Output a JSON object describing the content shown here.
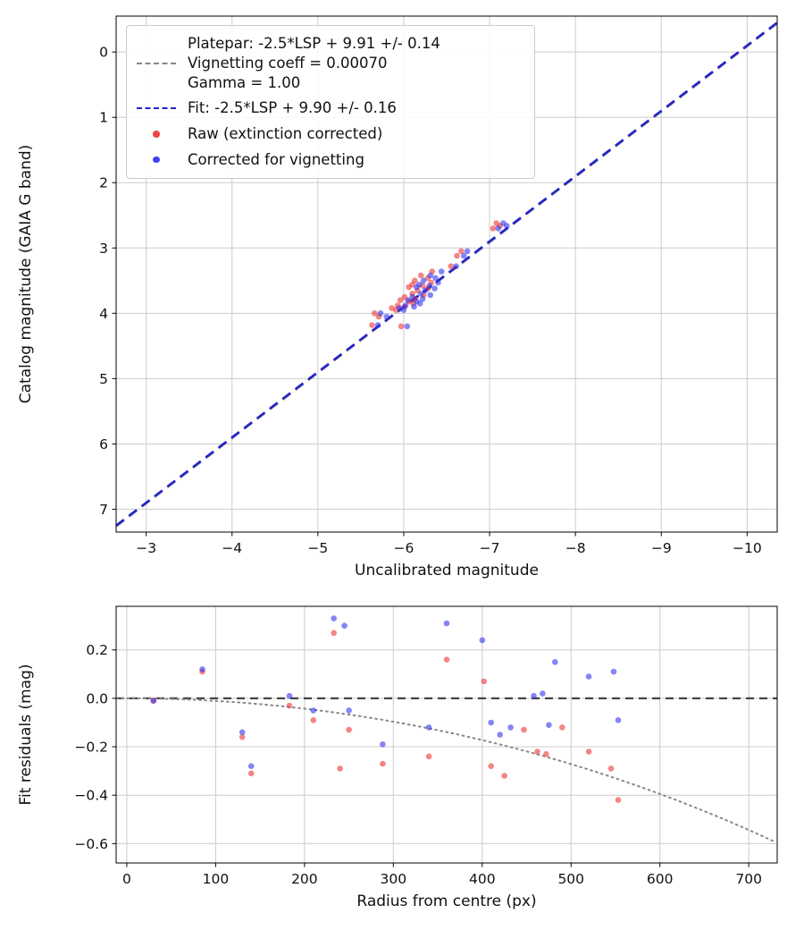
{
  "figure": {
    "background": "#ffffff",
    "text_color": "#111111",
    "grid_color": "#cccccc",
    "spine_color": "#000000"
  },
  "chart_data": [
    {
      "type": "scatter",
      "title": "",
      "xlabel": "Uncalibrated magnitude",
      "ylabel": "Catalog magnitude (GAIA G band)",
      "xlim": [
        -2.65,
        -10.35
      ],
      "ylim": [
        -0.55,
        7.35
      ],
      "x_axis_inverted": true,
      "y_axis_inverted": true,
      "grid": true,
      "xticks": [
        -3,
        -4,
        -5,
        -6,
        -7,
        -8,
        -9,
        -10
      ],
      "xticklabels": [
        "−3",
        "−4",
        "−5",
        "−6",
        "−7",
        "−8",
        "−9",
        "−10"
      ],
      "yticks": [
        0,
        1,
        2,
        3,
        4,
        5,
        6,
        7
      ],
      "yticklabels": [
        "0",
        "1",
        "2",
        "3",
        "4",
        "5",
        "6",
        "7"
      ],
      "lines": [
        {
          "name": "platepar-line",
          "label": "Platepar: -2.5*LSP + 9.91 +/- 0.14",
          "slope": 1,
          "intercept": 9.91,
          "color": "#888888",
          "style": "dashed"
        },
        {
          "name": "fit-line",
          "label": "Fit: -2.5*LSP + 9.90 +/- 0.16",
          "slope": 1,
          "intercept": 9.9,
          "color": "#2424cc",
          "style": "dashed"
        }
      ],
      "legend": [
        {
          "label": "Platepar: -2.5*LSP + 9.91 +/- 0.14\nVignetting coeff = 0.00070\nGamma = 1.00",
          "marker": "dashed-line",
          "color": "#888888"
        },
        {
          "label": "Fit: -2.5*LSP + 9.90 +/- 0.16",
          "marker": "dashed-line",
          "color": "#2424cc"
        },
        {
          "label": "Raw (extinction corrected)",
          "marker": "dot",
          "color": "#ee4444"
        },
        {
          "label": "Corrected for vignetting",
          "marker": "dot",
          "color": "#4444ee"
        }
      ],
      "legend_position": "upper left",
      "series": [
        {
          "name": "Raw (extinction corrected)",
          "color": "#ee3333",
          "opacity": 0.6,
          "points": [
            [
              -7.08,
              2.62
            ],
            [
              -7.12,
              2.66
            ],
            [
              -7.04,
              2.7
            ],
            [
              -6.67,
              3.05
            ],
            [
              -6.62,
              3.12
            ],
            [
              -6.55,
              3.28
            ],
            [
              -6.33,
              3.36
            ],
            [
              -6.2,
              3.42
            ],
            [
              -6.28,
              3.46
            ],
            [
              -6.13,
              3.5
            ],
            [
              -6.32,
              3.53
            ],
            [
              -6.1,
              3.56
            ],
            [
              -6.22,
              3.58
            ],
            [
              -6.06,
              3.6
            ],
            [
              -6.28,
              3.62
            ],
            [
              -6.16,
              3.65
            ],
            [
              -6.1,
              3.7
            ],
            [
              -6.23,
              3.72
            ],
            [
              -6.01,
              3.75
            ],
            [
              -6.13,
              3.78
            ],
            [
              -5.96,
              3.8
            ],
            [
              -6.06,
              3.82
            ],
            [
              -6.11,
              3.85
            ],
            [
              -5.93,
              3.88
            ],
            [
              -6.01,
              3.9
            ],
            [
              -5.86,
              3.92
            ],
            [
              -5.91,
              3.95
            ],
            [
              -5.66,
              4.0
            ],
            [
              -5.71,
              4.05
            ],
            [
              -5.63,
              4.18
            ],
            [
              -5.97,
              4.2
            ]
          ]
        },
        {
          "name": "Corrected for vignetting",
          "color": "#3333ee",
          "opacity": 0.6,
          "points": [
            [
              -7.16,
              2.62
            ],
            [
              -7.2,
              2.66
            ],
            [
              -7.1,
              2.7
            ],
            [
              -6.74,
              3.05
            ],
            [
              -6.7,
              3.12
            ],
            [
              -6.61,
              3.28
            ],
            [
              -6.44,
              3.36
            ],
            [
              -6.31,
              3.42
            ],
            [
              -6.37,
              3.46
            ],
            [
              -6.23,
              3.5
            ],
            [
              -6.4,
              3.53
            ],
            [
              -6.18,
              3.56
            ],
            [
              -6.3,
              3.58
            ],
            [
              -6.15,
              3.6
            ],
            [
              -6.36,
              3.62
            ],
            [
              -6.25,
              3.65
            ],
            [
              -6.2,
              3.7
            ],
            [
              -6.31,
              3.72
            ],
            [
              -6.1,
              3.75
            ],
            [
              -6.22,
              3.78
            ],
            [
              -6.05,
              3.8
            ],
            [
              -6.15,
              3.82
            ],
            [
              -6.19,
              3.85
            ],
            [
              -6.02,
              3.88
            ],
            [
              -6.12,
              3.9
            ],
            [
              -5.95,
              3.92
            ],
            [
              -6.0,
              3.95
            ],
            [
              -5.73,
              4.0
            ],
            [
              -5.8,
              4.05
            ],
            [
              -5.7,
              4.18
            ],
            [
              -6.04,
              4.2
            ]
          ]
        }
      ]
    },
    {
      "type": "scatter",
      "title": "",
      "xlabel": "Radius from centre (px)",
      "ylabel": "Fit residuals (mag)",
      "xlim": [
        -12,
        732
      ],
      "ylim": [
        0.38,
        -0.68
      ],
      "grid": true,
      "xticks": [
        0,
        100,
        200,
        300,
        400,
        500,
        600,
        700
      ],
      "xticklabels": [
        "0",
        "100",
        "200",
        "300",
        "400",
        "500",
        "600",
        "700"
      ],
      "yticks": [
        0.2,
        0.0,
        -0.2,
        -0.4,
        -0.6
      ],
      "yticklabels": [
        "0.2",
        "0.0",
        "−0.2",
        "−0.4",
        "−0.6"
      ],
      "zero_line": {
        "y": 0,
        "color": "#444444",
        "style": "dashed"
      },
      "vignetting_curve": {
        "coeff": 0.0007,
        "color": "#888888",
        "style": "dotted"
      },
      "series": [
        {
          "name": "Raw (extinction corrected)",
          "color": "#ee3333",
          "opacity": 0.6,
          "points": [
            [
              30,
              -0.01
            ],
            [
              85,
              0.11
            ],
            [
              130,
              -0.16
            ],
            [
              140,
              -0.31
            ],
            [
              183,
              -0.03
            ],
            [
              210,
              -0.09
            ],
            [
              233,
              0.27
            ],
            [
              240,
              -0.29
            ],
            [
              250,
              -0.13
            ],
            [
              288,
              -0.27
            ],
            [
              340,
              -0.24
            ],
            [
              360,
              0.16
            ],
            [
              402,
              0.07
            ],
            [
              410,
              -0.28
            ],
            [
              425,
              -0.32
            ],
            [
              447,
              -0.13
            ],
            [
              462,
              -0.22
            ],
            [
              472,
              -0.23
            ],
            [
              490,
              -0.12
            ],
            [
              520,
              -0.22
            ],
            [
              545,
              -0.29
            ],
            [
              553,
              -0.42
            ]
          ]
        },
        {
          "name": "Corrected for vignetting",
          "color": "#3333ee",
          "opacity": 0.6,
          "points": [
            [
              30,
              -0.01
            ],
            [
              85,
              0.12
            ],
            [
              130,
              -0.14
            ],
            [
              140,
              -0.28
            ],
            [
              183,
              0.01
            ],
            [
              210,
              -0.05
            ],
            [
              233,
              0.33
            ],
            [
              245,
              0.3
            ],
            [
              250,
              -0.05
            ],
            [
              288,
              -0.19
            ],
            [
              340,
              -0.12
            ],
            [
              360,
              0.31
            ],
            [
              400,
              0.24
            ],
            [
              410,
              -0.1
            ],
            [
              420,
              -0.15
            ],
            [
              432,
              -0.12
            ],
            [
              458,
              0.01
            ],
            [
              468,
              0.02
            ],
            [
              475,
              -0.11
            ],
            [
              482,
              0.15
            ],
            [
              520,
              0.09
            ],
            [
              548,
              0.11
            ],
            [
              553,
              -0.09
            ]
          ]
        }
      ]
    }
  ]
}
